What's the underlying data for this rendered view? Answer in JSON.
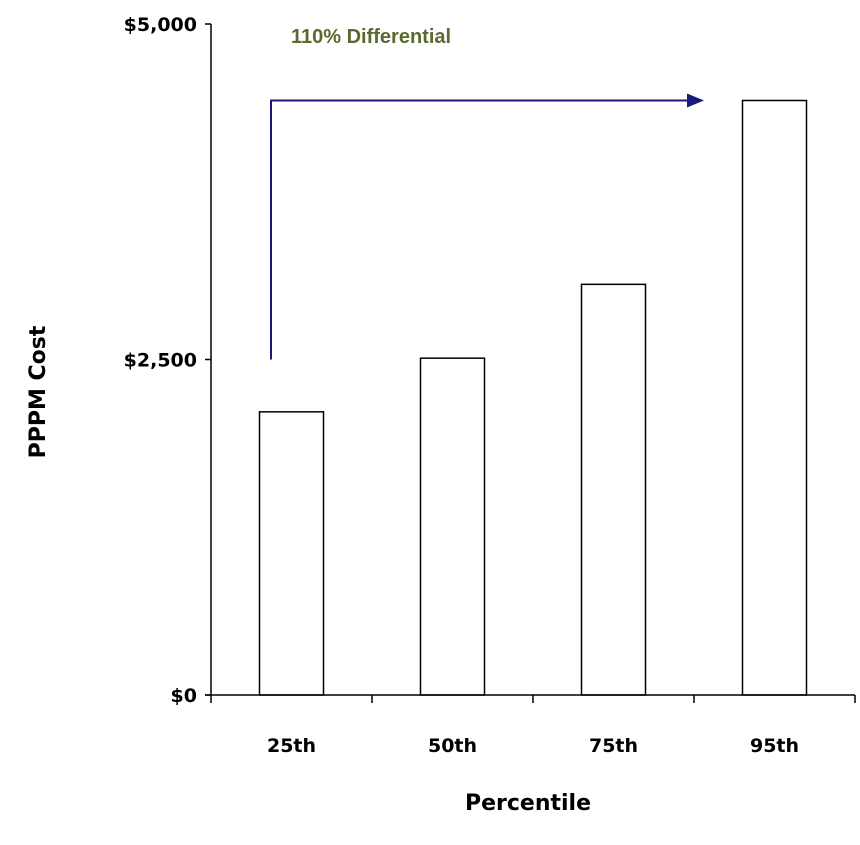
{
  "chart_data": {
    "type": "bar",
    "title": "",
    "xlabel": "Percentile",
    "ylabel": "PPPM Cost",
    "categories": [
      "25th",
      "50th",
      "75th",
      "95th"
    ],
    "values": [
      2110,
      2510,
      3060,
      4430
    ],
    "ylim": [
      0,
      5000
    ],
    "yticks": [
      0,
      2500,
      5000
    ],
    "ytick_labels": [
      "$0",
      "$2,500",
      "$5,000"
    ],
    "grid": false,
    "legend": "none",
    "bar_fill": "#ffffff",
    "bar_stroke": "#000000",
    "annotation": {
      "text": "110% Differential",
      "color": "#5a6a2e",
      "arrow_color": "#1a1a7a",
      "arrow_from_value": 2500,
      "arrow_to_value": 4430
    }
  }
}
